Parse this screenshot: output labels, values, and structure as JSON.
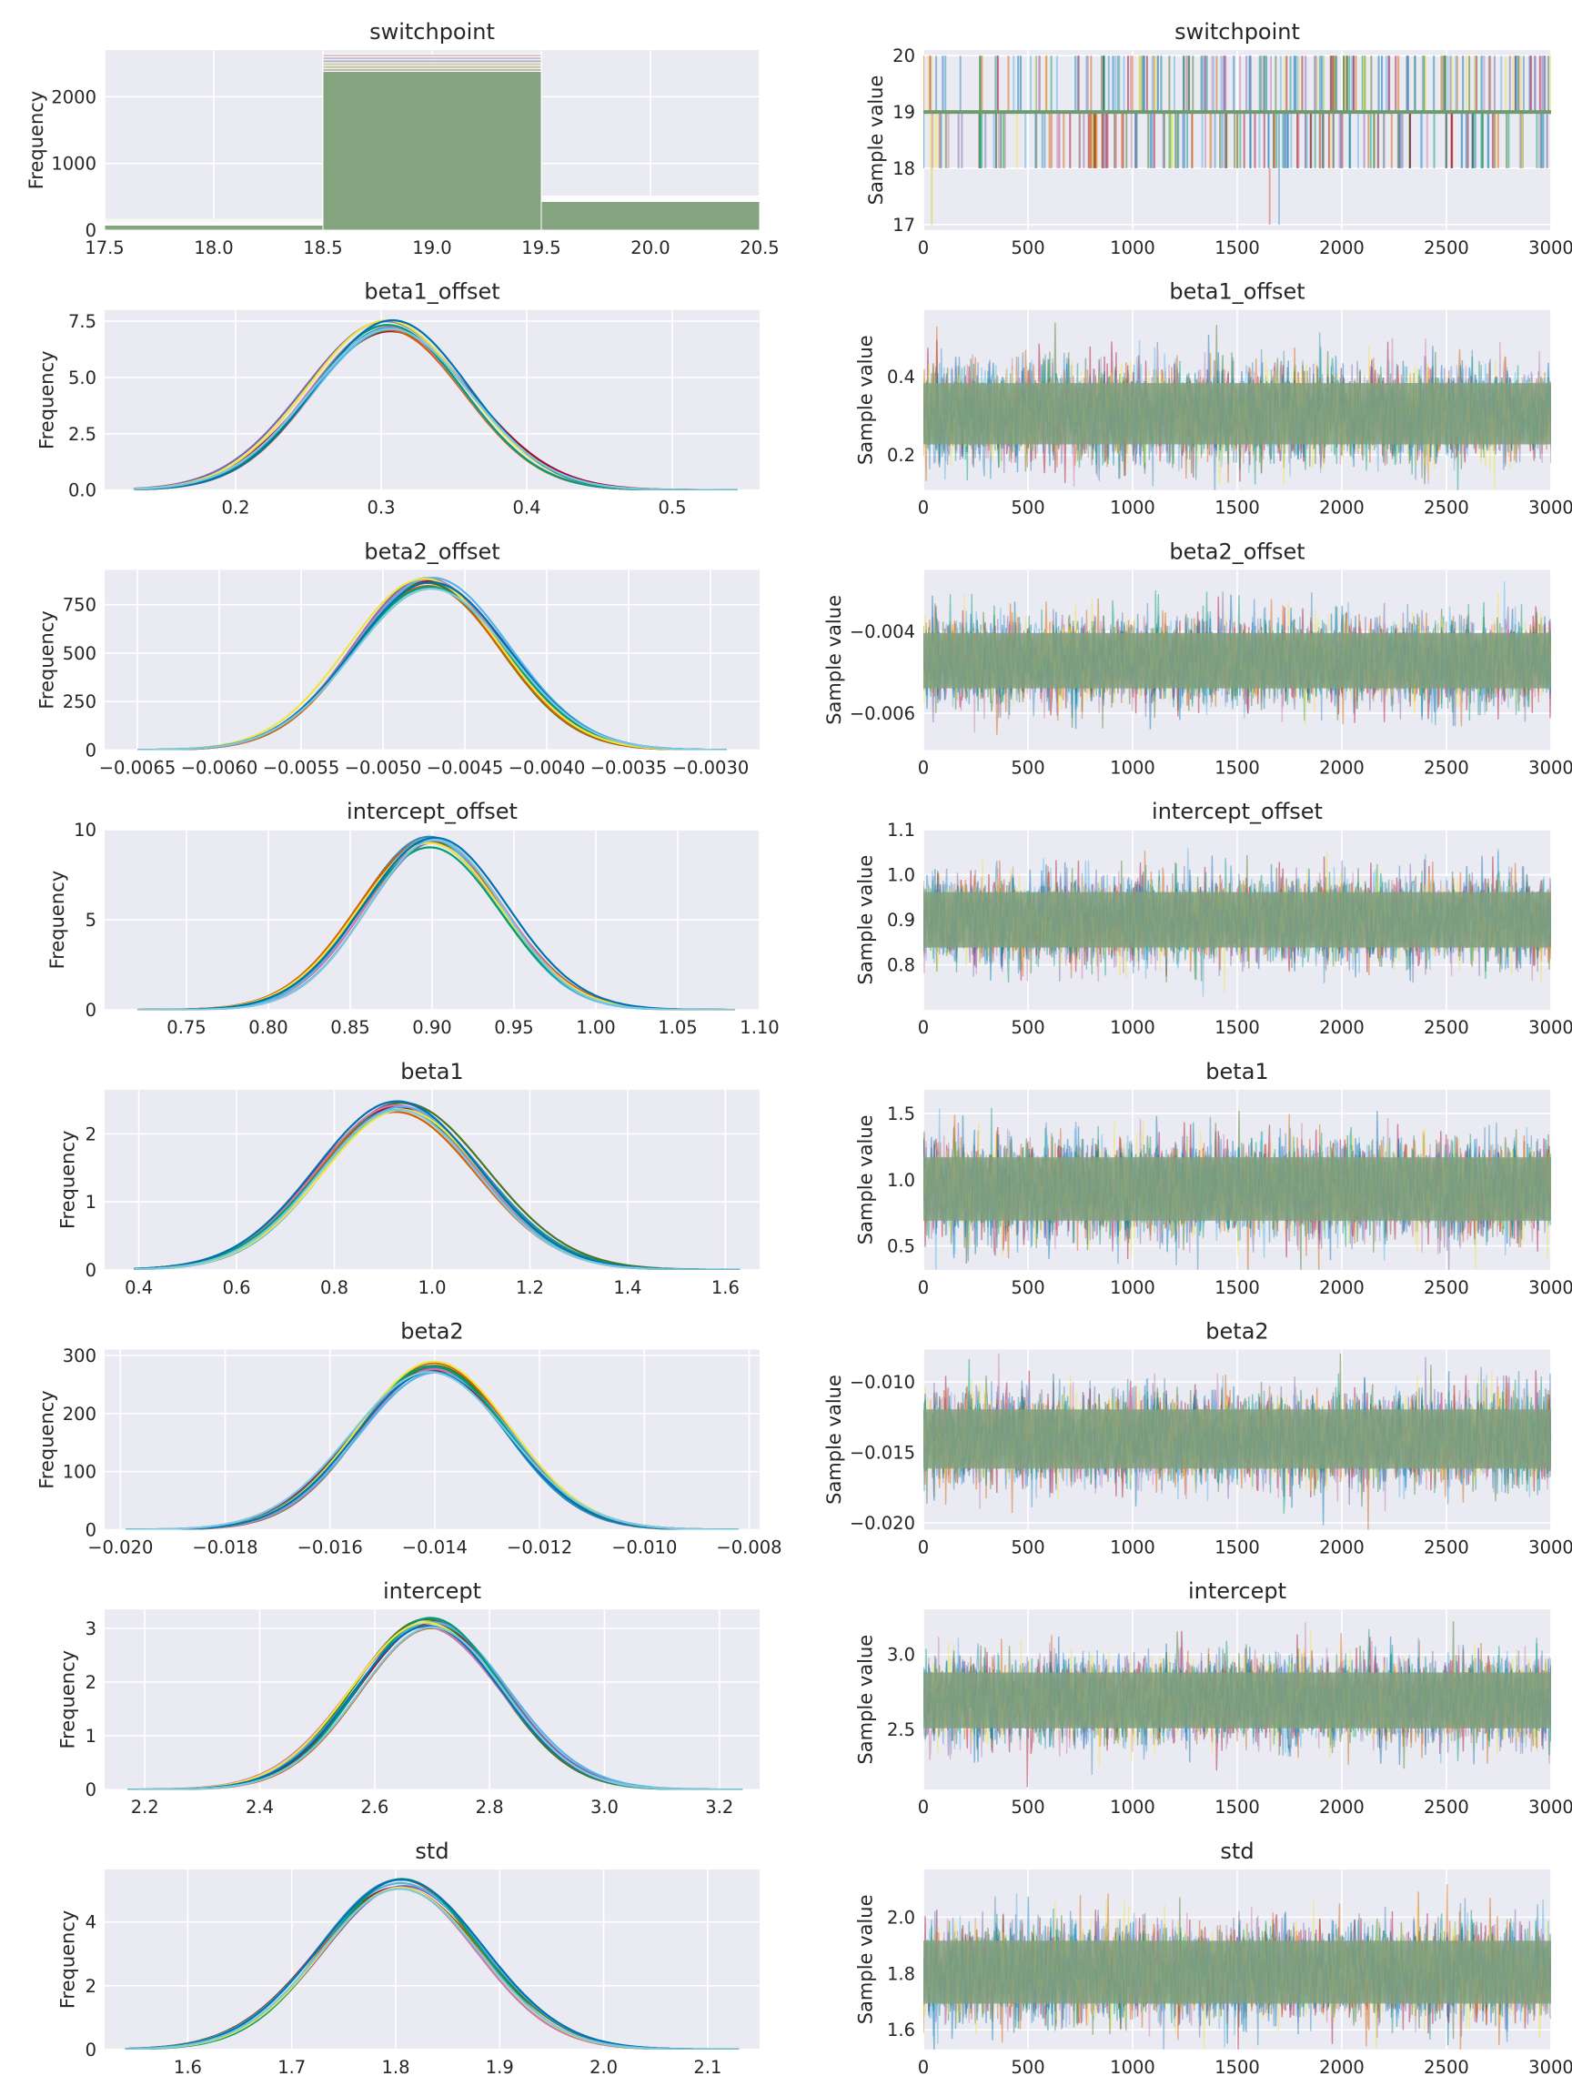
{
  "chart_data": [
    {
      "type": "area",
      "kind": "hist",
      "title": "switchpoint",
      "xlabel": "",
      "ylabel": "Frequency",
      "xlim": [
        17.5,
        20.5
      ],
      "ylim": [
        0,
        2700
      ],
      "xticks": [
        "17.5",
        "18.0",
        "18.5",
        "19.0",
        "19.5",
        "20.0",
        "20.5"
      ],
      "yticks": [
        "0",
        "1000",
        "2000"
      ],
      "bins": [
        17.5,
        18.5,
        19.5,
        20.5
      ],
      "counts_min": [
        75,
        2380,
        430
      ],
      "counts_max": [
        160,
        2640,
        510
      ]
    },
    {
      "type": "line",
      "kind": "trace",
      "title": "switchpoint",
      "xlabel": "",
      "ylabel": "Sample value",
      "xlim": [
        0,
        3000
      ],
      "ylim": [
        16.9,
        20.1
      ],
      "xticks": [
        "0",
        "500",
        "1000",
        "1500",
        "2000",
        "2500",
        "3000"
      ],
      "yticks": [
        "17",
        "18",
        "19",
        "20"
      ],
      "center": 19,
      "discrete_values": [
        18,
        19,
        20
      ],
      "rare_low_value": 17
    },
    {
      "type": "line",
      "kind": "kde",
      "title": "beta1_offset",
      "xlabel": "",
      "ylabel": "Frequency",
      "xlim": [
        0.11,
        0.56
      ],
      "ylim": [
        0,
        8.0
      ],
      "xticks": [
        "0.2",
        "0.3",
        "0.4",
        "0.5"
      ],
      "yticks": [
        "0.0",
        "2.5",
        "5.0",
        "7.5"
      ],
      "mean": 0.305,
      "sd": 0.054,
      "peak": 7.3,
      "support": [
        0.13,
        0.545
      ]
    },
    {
      "type": "line",
      "kind": "trace",
      "title": "beta1_offset",
      "xlabel": "",
      "ylabel": "Sample value",
      "xlim": [
        0,
        3000
      ],
      "ylim": [
        0.11,
        0.57
      ],
      "xticks": [
        "0",
        "500",
        "1000",
        "1500",
        "2000",
        "2500",
        "3000"
      ],
      "yticks": [
        "0.2",
        "0.4"
      ],
      "mean": 0.305,
      "sd": 0.054
    },
    {
      "type": "line",
      "kind": "kde",
      "title": "beta2_offset",
      "xlabel": "",
      "ylabel": "Frequency",
      "xlim": [
        -0.0067,
        -0.0027
      ],
      "ylim": [
        0,
        930
      ],
      "xticks": [
        "−0.0065",
        "−0.0060",
        "−0.0055",
        "−0.0050",
        "−0.0045",
        "−0.0040",
        "−0.0035",
        "−0.0030"
      ],
      "yticks": [
        "0",
        "250",
        "500",
        "750"
      ],
      "mean": -0.00472,
      "sd": 0.000465,
      "peak": 860,
      "support": [
        -0.0065,
        -0.0029
      ]
    },
    {
      "type": "line",
      "kind": "trace",
      "title": "beta2_offset",
      "xlabel": "",
      "ylabel": "Sample value",
      "xlim": [
        0,
        3000
      ],
      "ylim": [
        -0.0069,
        -0.0025
      ],
      "xticks": [
        "0",
        "500",
        "1000",
        "1500",
        "2000",
        "2500",
        "3000"
      ],
      "yticks": [
        "−0.004",
        "−0.006"
      ],
      "mean": -0.00472,
      "sd": 0.000465
    },
    {
      "type": "line",
      "kind": "kde",
      "title": "intercept_offset",
      "xlabel": "",
      "ylabel": "Frequency",
      "xlim": [
        0.7,
        1.1
      ],
      "ylim": [
        0,
        10
      ],
      "xticks": [
        "0.75",
        "0.80",
        "0.85",
        "0.90",
        "0.95",
        "1.00",
        "1.05",
        "1.10"
      ],
      "yticks": [
        "0",
        "5",
        "10"
      ],
      "mean": 0.9,
      "sd": 0.0425,
      "peak": 9.3,
      "support": [
        0.72,
        1.085
      ]
    },
    {
      "type": "line",
      "kind": "trace",
      "title": "intercept_offset",
      "xlabel": "",
      "ylabel": "Sample value",
      "xlim": [
        0,
        3000
      ],
      "ylim": [
        0.7,
        1.1
      ],
      "xticks": [
        "0",
        "500",
        "1000",
        "1500",
        "2000",
        "2500",
        "3000"
      ],
      "yticks": [
        "0.8",
        "0.9",
        "1.0",
        "1.1"
      ],
      "mean": 0.9,
      "sd": 0.0425
    },
    {
      "type": "line",
      "kind": "kde",
      "title": "beta1",
      "xlabel": "",
      "ylabel": "Frequency",
      "xlim": [
        0.33,
        1.67
      ],
      "ylim": [
        0,
        2.65
      ],
      "xticks": [
        "0.4",
        "0.6",
        "0.8",
        "1.0",
        "1.2",
        "1.4",
        "1.6"
      ],
      "yticks": [
        "0",
        "1",
        "2"
      ],
      "mean": 0.93,
      "sd": 0.165,
      "peak": 2.4,
      "support": [
        0.39,
        1.63
      ]
    },
    {
      "type": "line",
      "kind": "trace",
      "title": "beta1",
      "xlabel": "",
      "ylabel": "Sample value",
      "xlim": [
        0,
        3000
      ],
      "ylim": [
        0.32,
        1.68
      ],
      "xticks": [
        "0",
        "500",
        "1000",
        "1500",
        "2000",
        "2500",
        "3000"
      ],
      "yticks": [
        "0.5",
        "1.0",
        "1.5"
      ],
      "mean": 0.93,
      "sd": 0.165
    },
    {
      "type": "line",
      "kind": "kde",
      "title": "beta2",
      "xlabel": "",
      "ylabel": "Frequency",
      "xlim": [
        -0.0203,
        -0.0078
      ],
      "ylim": [
        0,
        310
      ],
      "xticks": [
        "−0.020",
        "−0.018",
        "−0.016",
        "−0.014",
        "−0.012",
        "−0.010",
        "−0.008"
      ],
      "yticks": [
        "0",
        "100",
        "200",
        "300"
      ],
      "mean": -0.01405,
      "sd": 0.00145,
      "peak": 280,
      "support": [
        -0.0199,
        -0.0082
      ]
    },
    {
      "type": "line",
      "kind": "trace",
      "title": "beta2",
      "xlabel": "",
      "ylabel": "Sample value",
      "xlim": [
        0,
        3000
      ],
      "ylim": [
        -0.0205,
        -0.0077
      ],
      "xticks": [
        "0",
        "500",
        "1000",
        "1500",
        "2000",
        "2500",
        "3000"
      ],
      "yticks": [
        "−0.010",
        "−0.015",
        "−0.020"
      ],
      "mean": -0.01405,
      "sd": 0.00145
    },
    {
      "type": "line",
      "kind": "kde",
      "title": "intercept",
      "xlabel": "",
      "ylabel": "Frequency",
      "xlim": [
        2.13,
        3.27
      ],
      "ylim": [
        0,
        3.35
      ],
      "xticks": [
        "2.2",
        "2.4",
        "2.6",
        "2.8",
        "3.0",
        "3.2"
      ],
      "yticks": [
        "0",
        "1",
        "2",
        "3"
      ],
      "mean": 2.695,
      "sd": 0.128,
      "peak": 3.1,
      "support": [
        2.17,
        3.24
      ]
    },
    {
      "type": "line",
      "kind": "trace",
      "title": "intercept",
      "xlabel": "",
      "ylabel": "Sample value",
      "xlim": [
        0,
        3000
      ],
      "ylim": [
        2.1,
        3.3
      ],
      "xticks": [
        "0",
        "500",
        "1000",
        "1500",
        "2000",
        "2500",
        "3000"
      ],
      "yticks": [
        "2.5",
        "3.0"
      ],
      "mean": 2.695,
      "sd": 0.128
    },
    {
      "type": "line",
      "kind": "kde",
      "title": "std",
      "xlabel": "",
      "ylabel": "Frequency",
      "xlim": [
        1.52,
        2.15
      ],
      "ylim": [
        0,
        5.65
      ],
      "xticks": [
        "1.6",
        "1.7",
        "1.8",
        "1.9",
        "2.0",
        "2.1"
      ],
      "yticks": [
        "0",
        "2",
        "4"
      ],
      "mean": 1.805,
      "sd": 0.077,
      "peak": 5.2,
      "support": [
        1.54,
        2.13
      ]
    },
    {
      "type": "line",
      "kind": "trace",
      "title": "std",
      "xlabel": "",
      "ylabel": "Sample value",
      "xlim": [
        0,
        3000
      ],
      "ylim": [
        1.53,
        2.17
      ],
      "xticks": [
        "0",
        "500",
        "1000",
        "1500",
        "2000",
        "2500",
        "3000"
      ],
      "yticks": [
        "1.6",
        "1.8",
        "2.0"
      ],
      "mean": 1.805,
      "sd": 0.077
    }
  ],
  "colors": {
    "background": "#eaeaf2",
    "grid": "#ffffff",
    "text": "#262626",
    "chains": [
      "#348abd",
      "#a60628",
      "#7a68a6",
      "#467821",
      "#d55e00",
      "#cc79a7",
      "#56b4e9",
      "#009e73",
      "#f0e442",
      "#0072b2"
    ],
    "kde_front": "#7bc8e0",
    "trace_center": "#6f9a6f",
    "trace_band": "#82a07e"
  }
}
